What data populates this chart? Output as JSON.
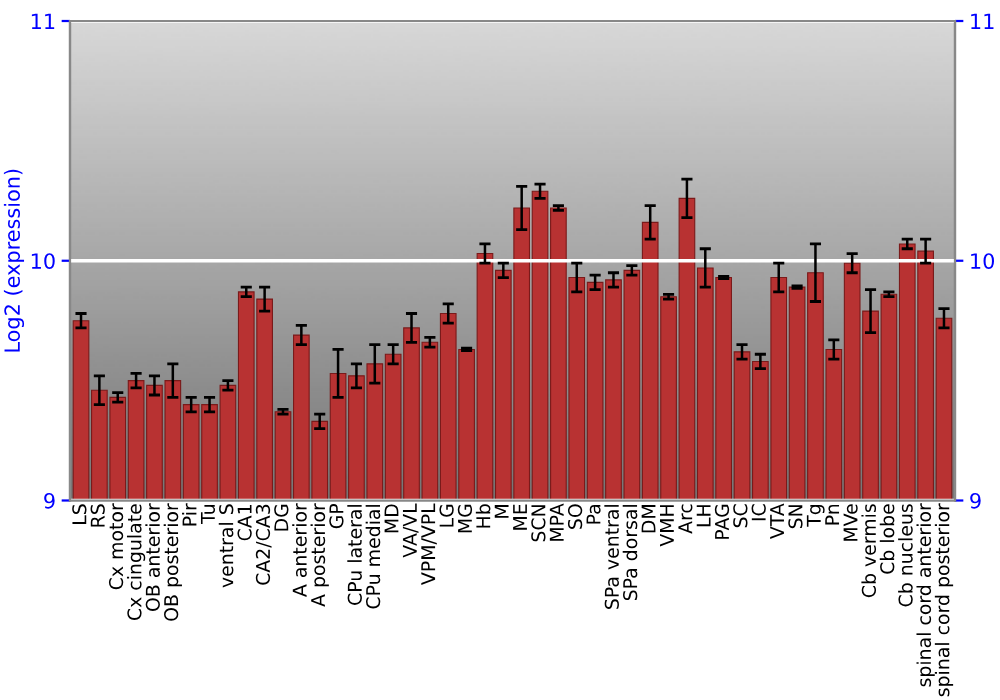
{
  "chart_data": {
    "type": "bar",
    "ylabel": "Log2 (expression)",
    "categories": [
      "LS",
      "RS",
      "Cx motor",
      "Cx cingulate",
      "OB anterior",
      "OB posterior",
      "Pir",
      "Tu",
      "ventral S",
      "CA1",
      "CA2/CA3",
      "DG",
      "A anterior",
      "A posterior",
      "GP",
      "CPu lateral",
      "CPu medial",
      "MD",
      "VA/VL",
      "VPM/VPL",
      "LG",
      "MG",
      "Hb",
      "M",
      "ME",
      "SCN",
      "MPA",
      "SO",
      "Pa",
      "SPa ventral",
      "SPa dorsal",
      "DM",
      "VMH",
      "Arc",
      "LH",
      "PAG",
      "SC",
      "IC",
      "VTA",
      "SN",
      "Tg",
      "Pn",
      "MVe",
      "Cb vermis",
      "Cb lobe",
      "Cb nucleus",
      "spinal cord anterior",
      "spinal cord posterior"
    ],
    "values": [
      9.75,
      9.46,
      9.43,
      9.5,
      9.48,
      9.5,
      9.4,
      9.4,
      9.48,
      9.87,
      9.84,
      9.37,
      9.69,
      9.33,
      9.53,
      9.52,
      9.57,
      9.61,
      9.72,
      9.66,
      9.78,
      9.63,
      10.03,
      9.96,
      10.22,
      10.29,
      10.22,
      9.93,
      9.91,
      9.92,
      9.96,
      10.16,
      9.85,
      10.26,
      9.97,
      9.93,
      9.62,
      9.58,
      9.93,
      9.89,
      9.95,
      9.63,
      9.99,
      9.79,
      9.86,
      10.07,
      10.04,
      9.76
    ],
    "errors": [
      0.03,
      0.06,
      0.02,
      0.03,
      0.04,
      0.07,
      0.03,
      0.03,
      0.02,
      0.02,
      0.05,
      0.01,
      0.04,
      0.03,
      0.1,
      0.05,
      0.08,
      0.04,
      0.06,
      0.02,
      0.04,
      0.005,
      0.04,
      0.03,
      0.09,
      0.03,
      0.01,
      0.06,
      0.03,
      0.03,
      0.02,
      0.07,
      0.01,
      0.08,
      0.08,
      0.005,
      0.03,
      0.03,
      0.06,
      0.005,
      0.12,
      0.04,
      0.04,
      0.09,
      0.01,
      0.02,
      0.05,
      0.04
    ],
    "color": "#b83232",
    "ylim": [
      9,
      11
    ],
    "yticks": [
      9,
      10,
      11
    ],
    "y2lim": [
      9,
      11
    ],
    "y2ticks": [
      9,
      10,
      11
    ],
    "grid": "y"
  }
}
